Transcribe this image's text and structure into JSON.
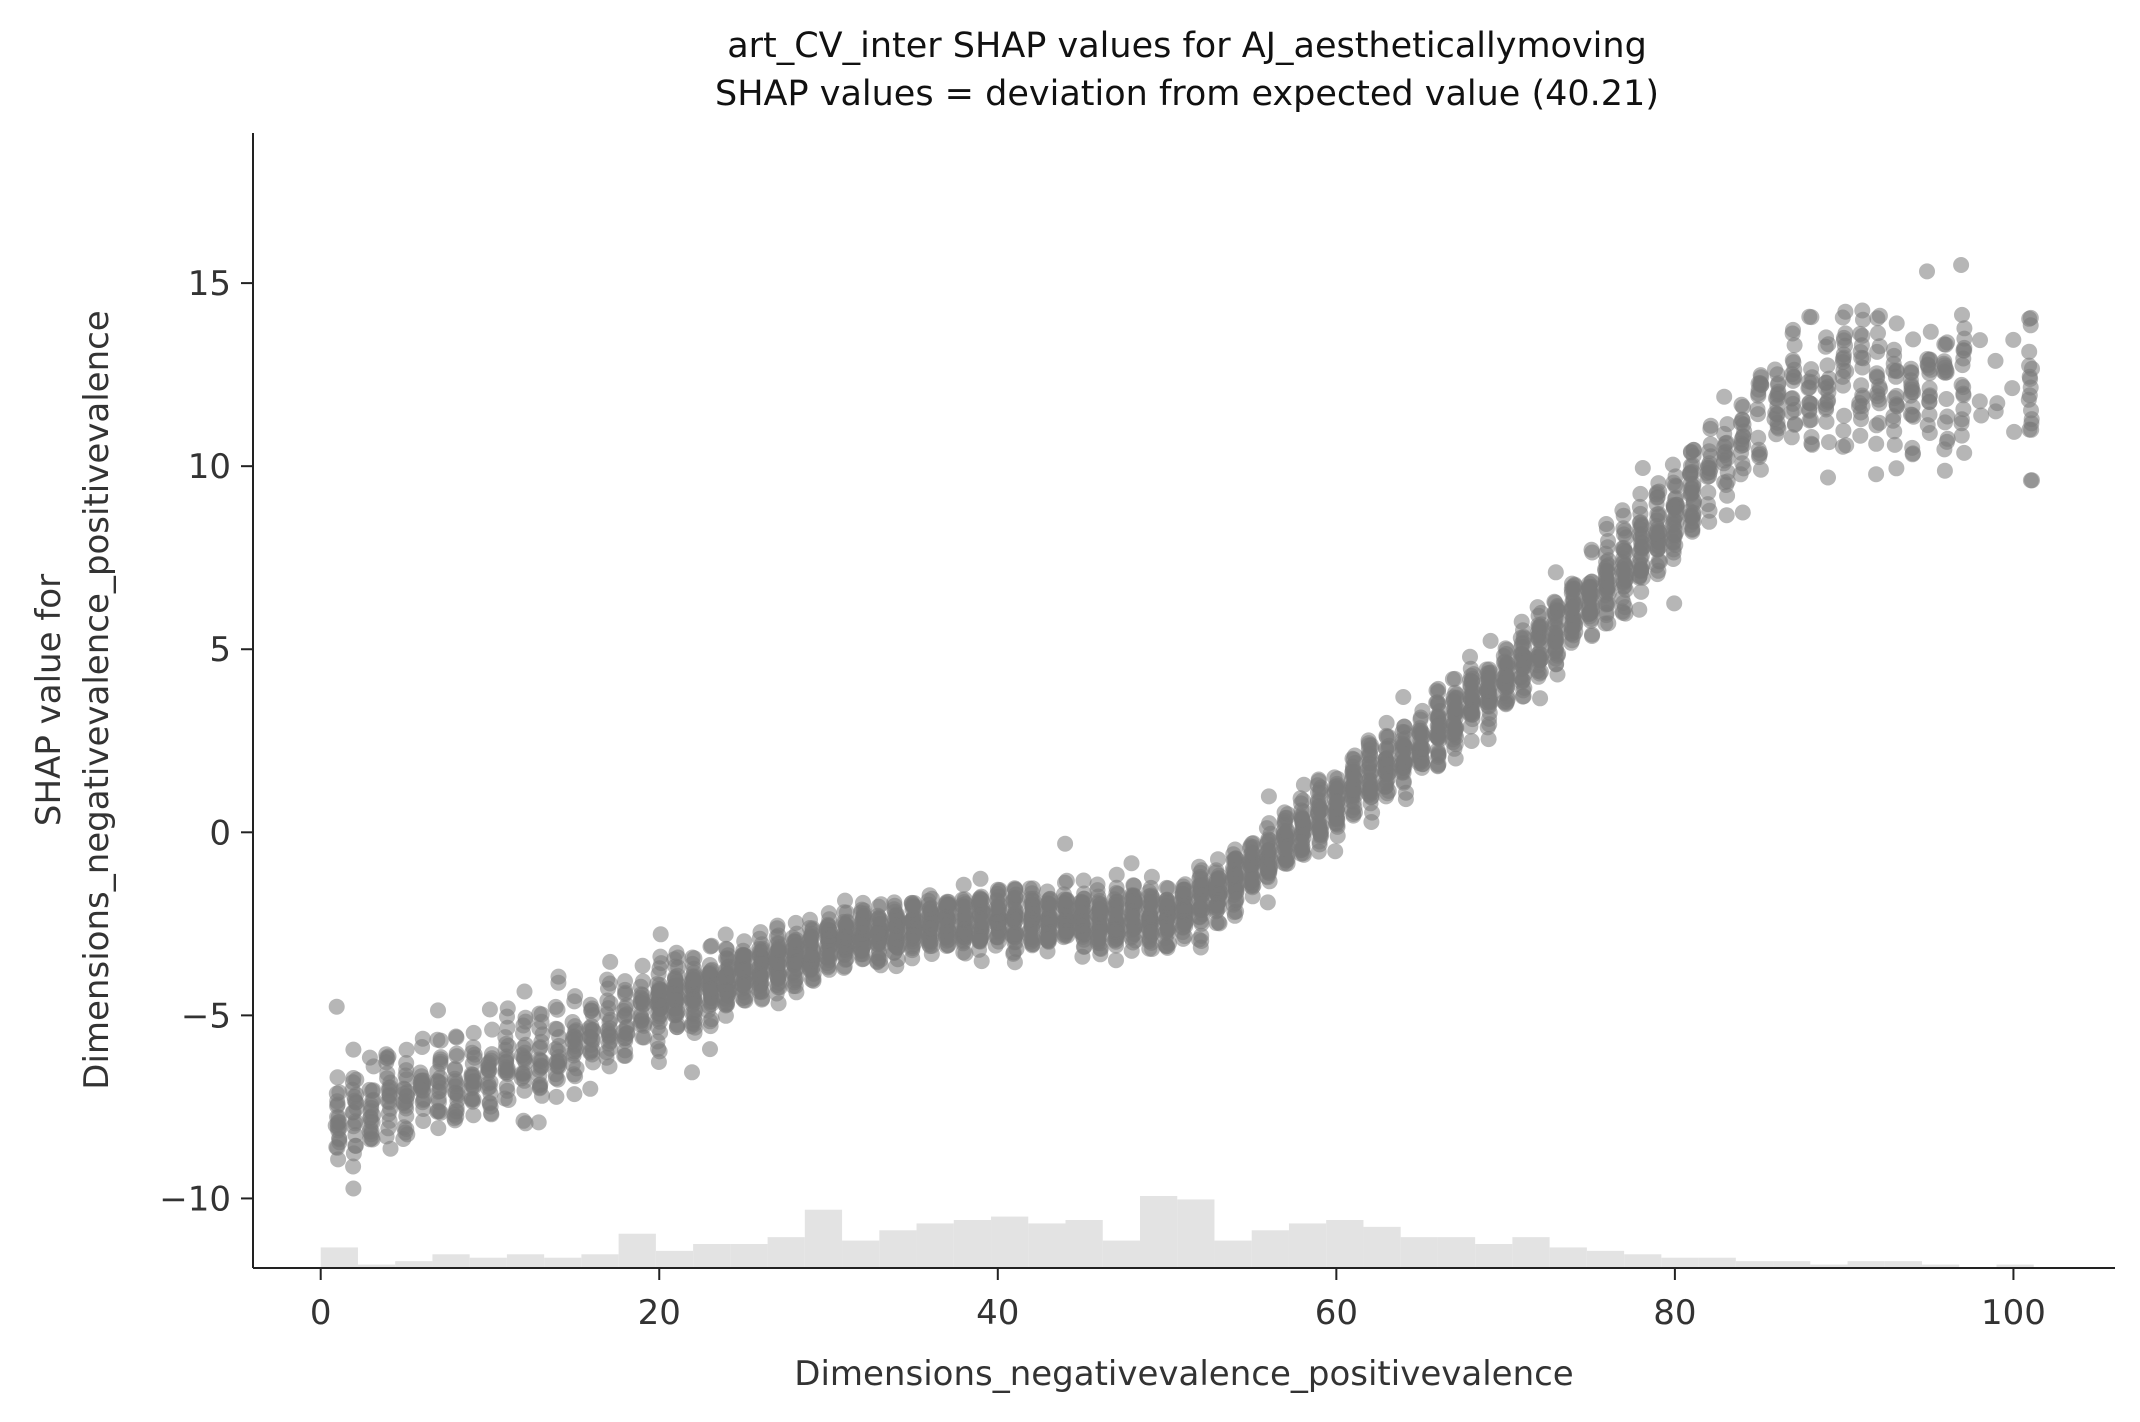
{
  "chart_data": {
    "type": "scatter",
    "title": "art_CV_inter SHAP values for AJ_aestheticallymoving",
    "subtitle": "SHAP values = deviation from expected value (40.21)",
    "xlabel": "Dimensions_negativevalence_positivevalence",
    "ylabel_line1": "SHAP value for",
    "ylabel_line2": "Dimensions_negativevalence_positivevalence",
    "xlim": [
      -4,
      106
    ],
    "ylim": [
      -11.9,
      19.1
    ],
    "x_ticks": [
      0,
      20,
      40,
      60,
      80,
      100
    ],
    "y_ticks": [
      -10,
      -5,
      0,
      5,
      10,
      15
    ],
    "x_tick_labels": [
      "0",
      "20",
      "40",
      "60",
      "80",
      "100"
    ],
    "y_tick_labels": [
      "−10",
      "−5",
      "0",
      "5",
      "10",
      "15"
    ],
    "point_color": "#7a7a7a",
    "hist_color": "#e3e3e3",
    "axis_color": "#222222",
    "series": [
      {
        "name": "SHAP values",
        "trend": [
          {
            "x": 1,
            "y": -7.8
          },
          {
            "x": 5,
            "y": -7.3
          },
          {
            "x": 10,
            "y": -6.6
          },
          {
            "x": 15,
            "y": -5.8
          },
          {
            "x": 20,
            "y": -4.6
          },
          {
            "x": 25,
            "y": -3.9
          },
          {
            "x": 30,
            "y": -3.0
          },
          {
            "x": 35,
            "y": -2.6
          },
          {
            "x": 40,
            "y": -2.4
          },
          {
            "x": 45,
            "y": -2.4
          },
          {
            "x": 50,
            "y": -2.3
          },
          {
            "x": 53,
            "y": -1.6
          },
          {
            "x": 56,
            "y": -0.6
          },
          {
            "x": 60,
            "y": 0.8
          },
          {
            "x": 65,
            "y": 2.5
          },
          {
            "x": 70,
            "y": 4.2
          },
          {
            "x": 75,
            "y": 6.4
          },
          {
            "x": 80,
            "y": 8.6
          },
          {
            "x": 85,
            "y": 11.3
          },
          {
            "x": 90,
            "y": 12.5
          },
          {
            "x": 95,
            "y": 12.2
          },
          {
            "x": 101,
            "y": 12.0
          }
        ],
        "spread": [
          {
            "x": 1,
            "s": 1.3
          },
          {
            "x": 20,
            "s": 1.0
          },
          {
            "x": 30,
            "s": 0.6
          },
          {
            "x": 50,
            "s": 0.7
          },
          {
            "x": 70,
            "s": 0.8
          },
          {
            "x": 80,
            "s": 1.1
          },
          {
            "x": 90,
            "s": 1.6
          },
          {
            "x": 101,
            "s": 2.0
          }
        ]
      }
    ],
    "histogram": {
      "bin_start": 0,
      "bin_width": 2.2,
      "counts": [
        6,
        1,
        2,
        4,
        3,
        4,
        3,
        4,
        10,
        5,
        7,
        7,
        9,
        17,
        8,
        11,
        13,
        14,
        15,
        13,
        14,
        8,
        21,
        20,
        8,
        11,
        13,
        14,
        12,
        9,
        9,
        7,
        9,
        6,
        5,
        4,
        3,
        3,
        2,
        2,
        1,
        2,
        2,
        1,
        0,
        1
      ]
    }
  }
}
